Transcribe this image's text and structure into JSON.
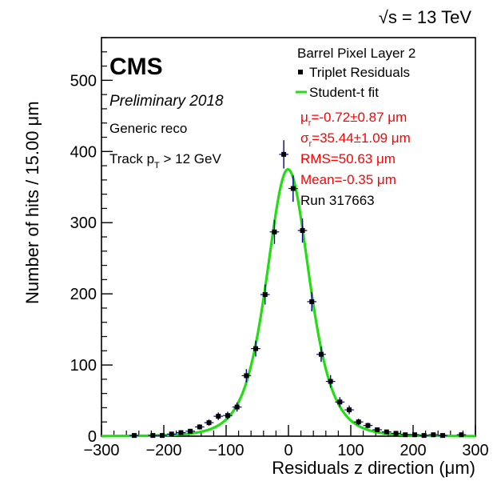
{
  "chart_data": {
    "type": "scatter",
    "title": "",
    "energy_label": "√s = 13 TeV",
    "experiment": "CMS",
    "status": "Preliminary 2018",
    "reco": "Generic reco",
    "track_cut": {
      "prefix": "Track p",
      "subscript": "T",
      "suffix": " > 12 GeV"
    },
    "xlabel": "Residuals z direction (μm)",
    "ylabel": "Number of hits / 15.00 μm",
    "xlim": [
      -300,
      300
    ],
    "ylim": [
      0,
      560
    ],
    "x_ticks": [
      -300,
      -200,
      -100,
      0,
      100,
      200,
      300
    ],
    "x_tick_labels": [
      "−300",
      "−200",
      "−100",
      "0",
      "100",
      "200",
      "300"
    ],
    "y_ticks": [
      0,
      100,
      200,
      300,
      400,
      500
    ],
    "y_tick_labels": [
      "0",
      "100",
      "200",
      "300",
      "400",
      "500"
    ],
    "grid": false,
    "legend": {
      "placement": "top-right",
      "header": "Barrel Pixel Layer 2",
      "entries": [
        {
          "label": "Triplet Residuals",
          "marker": "square",
          "color": "#000000"
        },
        {
          "label": "Student-t fit",
          "marker": "line",
          "color": "#22dd11"
        }
      ],
      "fit_results": [
        {
          "symbol": "μ",
          "sub": "r",
          "text": "=-0.72±0.87 μm",
          "color": "#ff0000"
        },
        {
          "symbol": "σ",
          "sub": "r",
          "text": "=35.44±1.09 μm",
          "color": "#ff0000"
        },
        {
          "symbol": "",
          "sub": "",
          "text": "RMS=50.63 μm",
          "color": "#ff0000"
        },
        {
          "symbol": "",
          "sub": "",
          "text": "Mean=-0.35 μm",
          "color": "#ff0000"
        },
        {
          "symbol": "",
          "sub": "",
          "text": "Run 317663",
          "color": "#000000"
        }
      ]
    },
    "series": [
      {
        "name": "Triplet Residuals",
        "color": "#000000",
        "error_color": "#00008b",
        "x": [
          -247.5,
          -217.5,
          -202.5,
          -187.5,
          -172.5,
          -157.5,
          -142.5,
          -127.5,
          -112.5,
          -97.5,
          -82.5,
          -67.5,
          -52.5,
          -37.5,
          -22.5,
          -7.5,
          7.5,
          22.5,
          37.5,
          52.5,
          67.5,
          82.5,
          97.5,
          112.5,
          127.5,
          142.5,
          157.5,
          172.5,
          187.5,
          202.5,
          217.5,
          232.5,
          247.5,
          277.5
        ],
        "y": [
          1,
          1,
          1,
          3,
          5,
          7,
          13,
          19,
          28,
          29,
          41,
          85,
          123,
          199,
          287,
          396,
          348,
          289,
          189,
          115,
          77,
          48,
          37,
          20,
          15,
          9,
          6,
          4,
          2,
          2,
          1,
          2,
          1,
          2
        ],
        "err": [
          1,
          1,
          1,
          1.7,
          2.2,
          2.6,
          3.6,
          4.4,
          5.3,
          5.4,
          6.4,
          9.2,
          11.1,
          14.1,
          16.9,
          19.9,
          18.7,
          17.0,
          13.7,
          10.7,
          8.8,
          6.9,
          6.1,
          4.5,
          3.9,
          3,
          2.4,
          2,
          1.4,
          1.4,
          1,
          1.4,
          1,
          1.4
        ]
      }
    ],
    "fit": {
      "name": "Student-t fit",
      "mu": -0.72,
      "sigma": 35.44,
      "nu": 4.5,
      "amplitude": 375,
      "color": "#22dd11"
    }
  }
}
